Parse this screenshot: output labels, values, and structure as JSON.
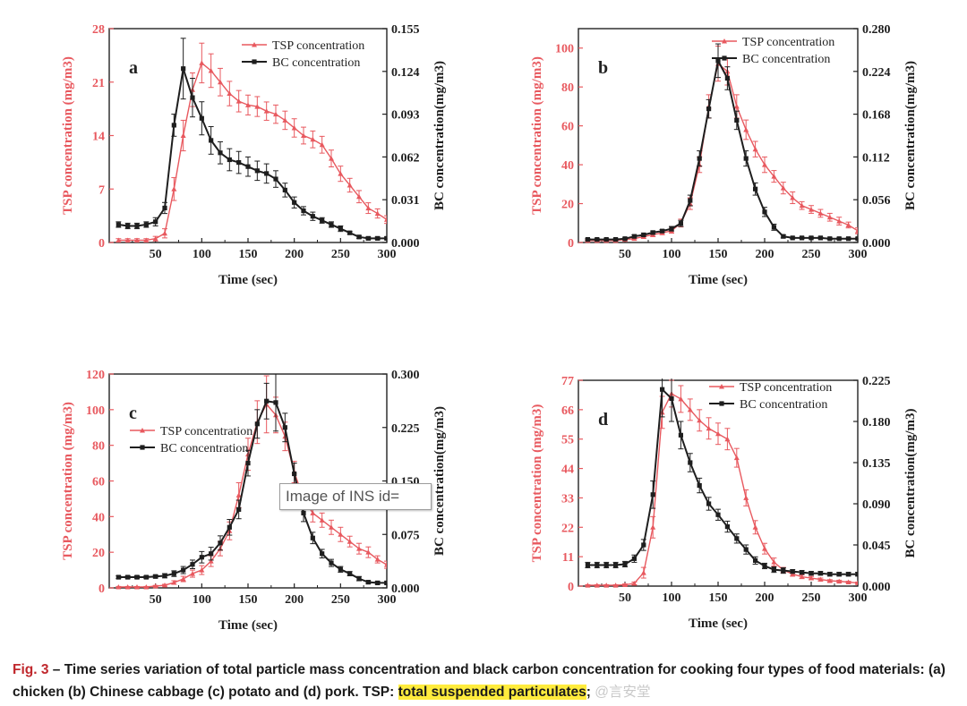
{
  "colors": {
    "tsp": "#e8595f",
    "bc": "#1e1e1e",
    "axis_left": "#e8595f",
    "axis_right": "#1e1e1e"
  },
  "overlay_text": "Image of INS id=",
  "caption": {
    "fig_label": "Fig. 3",
    "text": " – Time series variation of total particle mass concentration and black carbon concentration for cooking four types of food materials: (a) chicken (b) Chinese cabbage (c) potato and (d) pork. TSP: ",
    "highlight": "total suspended particulates",
    "tail": ";",
    "watermark": "@言安堂"
  },
  "chart_data": [
    {
      "type": "line",
      "panel_label": "a",
      "xlabel": "Time (sec)",
      "ylabel": "TSP concentration (mg/m3)",
      "y2label": "BC concentration(mg/m3)",
      "xlim": [
        0,
        300
      ],
      "ylim": [
        0,
        28
      ],
      "y2lim": [
        0,
        0.155
      ],
      "xticks": [
        50,
        100,
        150,
        200,
        250,
        300
      ],
      "xtick_labels": [
        "50",
        "100",
        "150",
        "200",
        "250",
        "300"
      ],
      "yticks": [
        0,
        7,
        14,
        21,
        28
      ],
      "ytick_labels": [
        "0",
        "7",
        "14",
        "21",
        "28"
      ],
      "y2ticks": [
        0,
        0.031,
        0.062,
        0.093,
        0.124,
        0.155
      ],
      "y2tick_labels": [
        "0.000",
        "0.031",
        "0.062",
        "0.093",
        "0.124",
        "0.155"
      ],
      "legend": [
        "TSP concentration",
        "BC concentration"
      ],
      "legend_position": "top-right",
      "series": [
        {
          "name": "TSP concentration",
          "axis": "left",
          "x": [
            10,
            20,
            30,
            40,
            50,
            60,
            70,
            80,
            90,
            100,
            110,
            120,
            130,
            140,
            150,
            160,
            170,
            180,
            190,
            200,
            210,
            220,
            230,
            240,
            250,
            260,
            270,
            280,
            290,
            300
          ],
          "y": [
            0.3,
            0.3,
            0.3,
            0.3,
            0.5,
            1.2,
            7,
            14,
            20,
            23.5,
            22.5,
            21,
            19.5,
            18.5,
            18,
            17.8,
            17.2,
            16.8,
            16,
            15,
            14,
            13.5,
            12.8,
            11,
            9,
            7.5,
            6,
            4.5,
            3.8,
            3
          ],
          "err": [
            0.2,
            0.2,
            0.2,
            0.2,
            0.3,
            0.6,
            1.5,
            2,
            2.2,
            2.6,
            2.2,
            1.8,
            1.6,
            1.4,
            1.3,
            1.3,
            1.2,
            1.2,
            1.2,
            1.2,
            1.1,
            1.1,
            1.1,
            1.1,
            1,
            0.9,
            0.8,
            0.7,
            0.6,
            0.5
          ]
        },
        {
          "name": "BC concentration",
          "axis": "right",
          "x": [
            10,
            20,
            30,
            40,
            50,
            60,
            70,
            80,
            90,
            100,
            110,
            120,
            130,
            140,
            150,
            160,
            170,
            180,
            190,
            200,
            210,
            220,
            230,
            240,
            250,
            260,
            270,
            280,
            290,
            300
          ],
          "y": [
            0.013,
            0.012,
            0.012,
            0.013,
            0.015,
            0.025,
            0.085,
            0.126,
            0.105,
            0.09,
            0.074,
            0.065,
            0.06,
            0.058,
            0.055,
            0.052,
            0.05,
            0.046,
            0.038,
            0.029,
            0.023,
            0.019,
            0.016,
            0.013,
            0.01,
            0.007,
            0.004,
            0.003,
            0.003,
            0.003
          ],
          "err": [
            0.002,
            0.002,
            0.002,
            0.002,
            0.003,
            0.004,
            0.008,
            0.022,
            0.014,
            0.012,
            0.01,
            0.008,
            0.008,
            0.008,
            0.007,
            0.007,
            0.007,
            0.006,
            0.005,
            0.004,
            0.003,
            0.003,
            0.002,
            0.002,
            0.002,
            0.001,
            0.001,
            0.001,
            0.001,
            0.001
          ]
        }
      ]
    },
    {
      "type": "line",
      "panel_label": "b",
      "xlabel": "Time (sec)",
      "ylabel": "TSP concentration (mg/m3)",
      "y2label": "BC concentration(mg/m3)",
      "xlim": [
        0,
        300
      ],
      "ylim": [
        0,
        110
      ],
      "y2lim": [
        0,
        0.28
      ],
      "xticks": [
        50,
        100,
        150,
        200,
        250,
        300
      ],
      "xtick_labels": [
        "50",
        "100",
        "150",
        "200",
        "250",
        "300"
      ],
      "yticks": [
        0,
        20,
        40,
        60,
        80,
        100
      ],
      "ytick_labels": [
        "0",
        "20",
        "40",
        "60",
        "80",
        "100"
      ],
      "y2ticks": [
        0,
        0.056,
        0.112,
        0.168,
        0.224,
        0.28
      ],
      "y2tick_labels": [
        "0.000",
        "0.056",
        "0.112",
        "0.168",
        "0.224",
        "0.280"
      ],
      "legend": [
        "TSP concentration",
        "BC concentration"
      ],
      "legend_position": "top-right",
      "series": [
        {
          "name": "TSP concentration",
          "axis": "left",
          "x": [
            10,
            20,
            30,
            40,
            50,
            60,
            70,
            80,
            90,
            100,
            110,
            120,
            130,
            140,
            150,
            160,
            170,
            180,
            190,
            200,
            210,
            220,
            230,
            240,
            250,
            260,
            270,
            280,
            290,
            300
          ],
          "y": [
            1,
            1,
            1,
            1,
            1.5,
            2,
            3,
            4,
            5,
            6,
            10,
            20,
            40,
            70,
            92,
            88,
            70,
            58,
            48,
            40,
            34,
            28,
            23,
            19,
            17,
            15,
            13,
            11,
            9,
            6
          ],
          "err": [
            0.5,
            0.5,
            0.5,
            0.5,
            0.5,
            0.6,
            0.8,
            1,
            1,
            1.2,
            2,
            3,
            4,
            6,
            9,
            7,
            6,
            5,
            4,
            4,
            3,
            3,
            3,
            2,
            2,
            2,
            2,
            2,
            1.5,
            1.5
          ]
        },
        {
          "name": "BC concentration",
          "axis": "right",
          "x": [
            10,
            20,
            30,
            40,
            50,
            60,
            70,
            80,
            90,
            100,
            110,
            120,
            130,
            140,
            150,
            160,
            170,
            180,
            190,
            200,
            210,
            220,
            230,
            240,
            250,
            260,
            270,
            280,
            290,
            300
          ],
          "y": [
            0.004,
            0.004,
            0.004,
            0.004,
            0.005,
            0.008,
            0.01,
            0.013,
            0.015,
            0.018,
            0.025,
            0.055,
            0.11,
            0.175,
            0.238,
            0.215,
            0.16,
            0.11,
            0.07,
            0.04,
            0.02,
            0.008,
            0.006,
            0.006,
            0.006,
            0.006,
            0.005,
            0.005,
            0.005,
            0.005
          ],
          "err": [
            0.001,
            0.001,
            0.001,
            0.001,
            0.001,
            0.002,
            0.002,
            0.002,
            0.002,
            0.003,
            0.004,
            0.007,
            0.01,
            0.012,
            0.022,
            0.015,
            0.012,
            0.01,
            0.008,
            0.006,
            0.004,
            0.002,
            0.001,
            0.001,
            0.001,
            0.001,
            0.001,
            0.001,
            0.001,
            0.001
          ]
        }
      ]
    },
    {
      "type": "line",
      "panel_label": "c",
      "xlabel": "Time (sec)",
      "ylabel": "TSP concentration (mg/m3)",
      "y2label": "BC concentration(mg/m3)",
      "xlim": [
        0,
        300
      ],
      "ylim": [
        0,
        120
      ],
      "y2lim": [
        0,
        0.3
      ],
      "xticks": [
        50,
        100,
        150,
        200,
        250,
        300
      ],
      "xtick_labels": [
        "50",
        "100",
        "150",
        "200",
        "250",
        "300"
      ],
      "yticks": [
        0,
        20,
        40,
        60,
        80,
        100,
        120
      ],
      "ytick_labels": [
        "0",
        "20",
        "40",
        "60",
        "80",
        "100",
        "120"
      ],
      "y2ticks": [
        0,
        0.075,
        0.15,
        0.225,
        0.3
      ],
      "y2tick_labels": [
        "0.000",
        "0.075",
        "0.150",
        "0.225",
        "0.300"
      ],
      "legend": [
        "TSP concentration",
        "BC concentration"
      ],
      "legend_position": "middle-left",
      "series": [
        {
          "name": "TSP concentration",
          "axis": "left",
          "x": [
            10,
            20,
            30,
            40,
            50,
            60,
            70,
            80,
            90,
            100,
            110,
            120,
            130,
            140,
            150,
            160,
            170,
            180,
            190,
            200,
            210,
            220,
            230,
            240,
            250,
            260,
            270,
            280,
            290,
            300
          ],
          "y": [
            0.5,
            0.5,
            0.5,
            0.5,
            1,
            1.5,
            3,
            5,
            8,
            10,
            15,
            22,
            32,
            52,
            75,
            93,
            103,
            97,
            85,
            65,
            50,
            42,
            38,
            34,
            30,
            26,
            22,
            20,
            16,
            13
          ],
          "err": [
            0.3,
            0.3,
            0.3,
            0.3,
            0.4,
            0.5,
            1,
            1.5,
            2,
            2.5,
            3,
            4,
            5,
            7,
            9,
            12,
            16,
            10,
            8,
            6,
            5,
            5,
            4,
            4,
            4,
            3,
            3,
            3,
            2,
            2
          ]
        },
        {
          "name": "BC concentration",
          "axis": "right",
          "x": [
            10,
            20,
            30,
            40,
            50,
            60,
            70,
            80,
            90,
            100,
            110,
            120,
            130,
            140,
            150,
            160,
            170,
            180,
            190,
            200,
            210,
            220,
            230,
            240,
            250,
            260,
            270,
            280,
            290,
            300
          ],
          "y": [
            0.015,
            0.015,
            0.015,
            0.015,
            0.016,
            0.017,
            0.02,
            0.025,
            0.033,
            0.043,
            0.048,
            0.063,
            0.085,
            0.11,
            0.175,
            0.23,
            0.262,
            0.26,
            0.225,
            0.16,
            0.105,
            0.07,
            0.048,
            0.035,
            0.026,
            0.02,
            0.013,
            0.008,
            0.007,
            0.007
          ],
          "err": [
            0.002,
            0.002,
            0.002,
            0.002,
            0.002,
            0.003,
            0.004,
            0.005,
            0.006,
            0.008,
            0.009,
            0.01,
            0.011,
            0.013,
            0.018,
            0.02,
            0.025,
            0.04,
            0.02,
            0.015,
            0.012,
            0.008,
            0.006,
            0.005,
            0.004,
            0.003,
            0.003,
            0.002,
            0.002,
            0.002
          ]
        }
      ]
    },
    {
      "type": "line",
      "panel_label": "d",
      "xlabel": "Time (sec)",
      "ylabel": "TSP concentration (mg/m3)",
      "y2label": "BC concentration(mg/m3)",
      "xlim": [
        0,
        300
      ],
      "ylim": [
        0,
        77
      ],
      "y2lim": [
        0,
        0.225
      ],
      "xticks": [
        50,
        100,
        150,
        200,
        250,
        300
      ],
      "xtick_labels": [
        "50",
        "100",
        "150",
        "200",
        "250",
        "300"
      ],
      "yticks": [
        0,
        11,
        22,
        33,
        44,
        55,
        66,
        77
      ],
      "ytick_labels": [
        "0",
        "11",
        "22",
        "33",
        "44",
        "55",
        "66",
        "77"
      ],
      "y2ticks": [
        0,
        0.045,
        0.09,
        0.135,
        0.18,
        0.225
      ],
      "y2tick_labels": [
        "0.000",
        "0.045",
        "0.090",
        "0.135",
        "0.180",
        "0.225"
      ],
      "legend": [
        "TSP concentration",
        "BC concentration"
      ],
      "legend_position": "top-right",
      "series": [
        {
          "name": "TSP concentration",
          "axis": "left",
          "x": [
            10,
            20,
            30,
            40,
            50,
            60,
            70,
            80,
            90,
            100,
            110,
            120,
            130,
            140,
            150,
            160,
            170,
            180,
            190,
            200,
            210,
            220,
            230,
            240,
            250,
            260,
            270,
            280,
            290,
            300
          ],
          "y": [
            0.3,
            0.3,
            0.3,
            0.3,
            0.5,
            1,
            5,
            22,
            65,
            72,
            70,
            66,
            62,
            59,
            57,
            55,
            48,
            33,
            22,
            14,
            9,
            6,
            4.5,
            3.5,
            3,
            2.5,
            2,
            1.8,
            1.5,
            1.2
          ],
          "err": [
            0.2,
            0.2,
            0.2,
            0.2,
            0.3,
            0.5,
            2,
            4,
            6,
            5,
            5,
            4,
            4,
            4,
            4,
            4,
            3.5,
            3,
            2.5,
            2,
            1.5,
            1,
            0.8,
            0.7,
            0.6,
            0.5,
            0.4,
            0.4,
            0.3,
            0.3
          ]
        },
        {
          "name": "BC concentration",
          "axis": "right",
          "x": [
            10,
            20,
            30,
            40,
            50,
            60,
            70,
            80,
            90,
            100,
            110,
            120,
            130,
            140,
            150,
            160,
            170,
            180,
            190,
            200,
            210,
            220,
            230,
            240,
            250,
            260,
            270,
            280,
            290,
            300
          ],
          "y": [
            0.023,
            0.023,
            0.023,
            0.023,
            0.024,
            0.03,
            0.045,
            0.1,
            0.215,
            0.205,
            0.165,
            0.135,
            0.11,
            0.09,
            0.078,
            0.065,
            0.052,
            0.04,
            0.028,
            0.022,
            0.018,
            0.017,
            0.016,
            0.015,
            0.014,
            0.014,
            0.013,
            0.013,
            0.013,
            0.013
          ],
          "err": [
            0.003,
            0.003,
            0.003,
            0.003,
            0.003,
            0.004,
            0.006,
            0.015,
            0.03,
            0.025,
            0.015,
            0.01,
            0.008,
            0.007,
            0.006,
            0.006,
            0.005,
            0.005,
            0.004,
            0.003,
            0.003,
            0.003,
            0.002,
            0.002,
            0.002,
            0.002,
            0.002,
            0.002,
            0.002,
            0.002
          ]
        }
      ]
    }
  ]
}
